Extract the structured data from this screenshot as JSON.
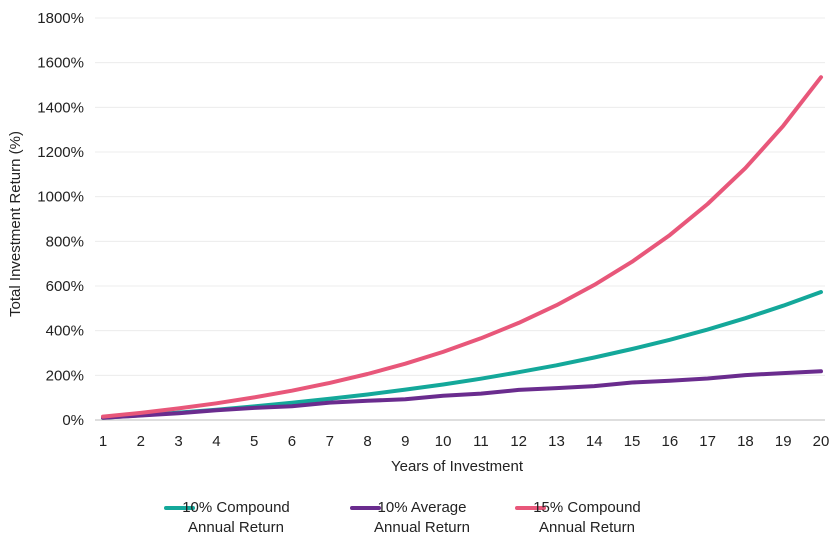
{
  "chart_data": {
    "type": "line",
    "title": "",
    "xlabel": "Years of Investment",
    "ylabel": "Total Investment Return (%)",
    "x": [
      1,
      2,
      3,
      4,
      5,
      6,
      7,
      8,
      9,
      10,
      11,
      12,
      13,
      14,
      15,
      16,
      17,
      18,
      19,
      20
    ],
    "ylim": [
      0,
      1800
    ],
    "yticks": [
      0,
      200,
      400,
      600,
      800,
      1000,
      1200,
      1400,
      1600,
      1800
    ],
    "ytick_labels": [
      "0%",
      "200%",
      "400%",
      "600%",
      "800%",
      "1000%",
      "1200%",
      "1400%",
      "1600%",
      "1800%"
    ],
    "xtick_labels": [
      "1",
      "2",
      "3",
      "4",
      "5",
      "6",
      "7",
      "8",
      "9",
      "10",
      "11",
      "12",
      "13",
      "14",
      "15",
      "16",
      "17",
      "18",
      "19",
      "20"
    ],
    "grid": true,
    "legend_position": "bottom",
    "series": [
      {
        "name": "10% Compound Annual Return",
        "legend_lines": [
          "10% Compound",
          "Annual Return"
        ],
        "color": "#14a89a",
        "values": [
          10,
          21,
          33,
          46,
          61,
          77,
          95,
          114,
          136,
          159,
          185,
          214,
          245,
          280,
          318,
          359,
          405,
          456,
          512,
          573
        ]
      },
      {
        "name": "10% Average Annual Return",
        "legend_lines": [
          "10% Average",
          "Annual Return"
        ],
        "color": "#6a2c8e",
        "values": [
          10,
          20,
          30,
          44,
          54,
          62,
          78,
          86,
          93,
          109,
          118,
          135,
          143,
          152,
          168,
          176,
          186,
          201,
          210,
          218
        ]
      },
      {
        "name": "15% Compound Annual Return",
        "legend_lines": [
          "15% Compound",
          "Annual Return"
        ],
        "color": "#e8577a",
        "values": [
          15,
          32,
          52,
          75,
          101,
          131,
          166,
          206,
          252,
          305,
          366,
          435,
          514,
          605,
          709,
          828,
          967,
          1128,
          1317,
          1535
        ]
      }
    ]
  }
}
